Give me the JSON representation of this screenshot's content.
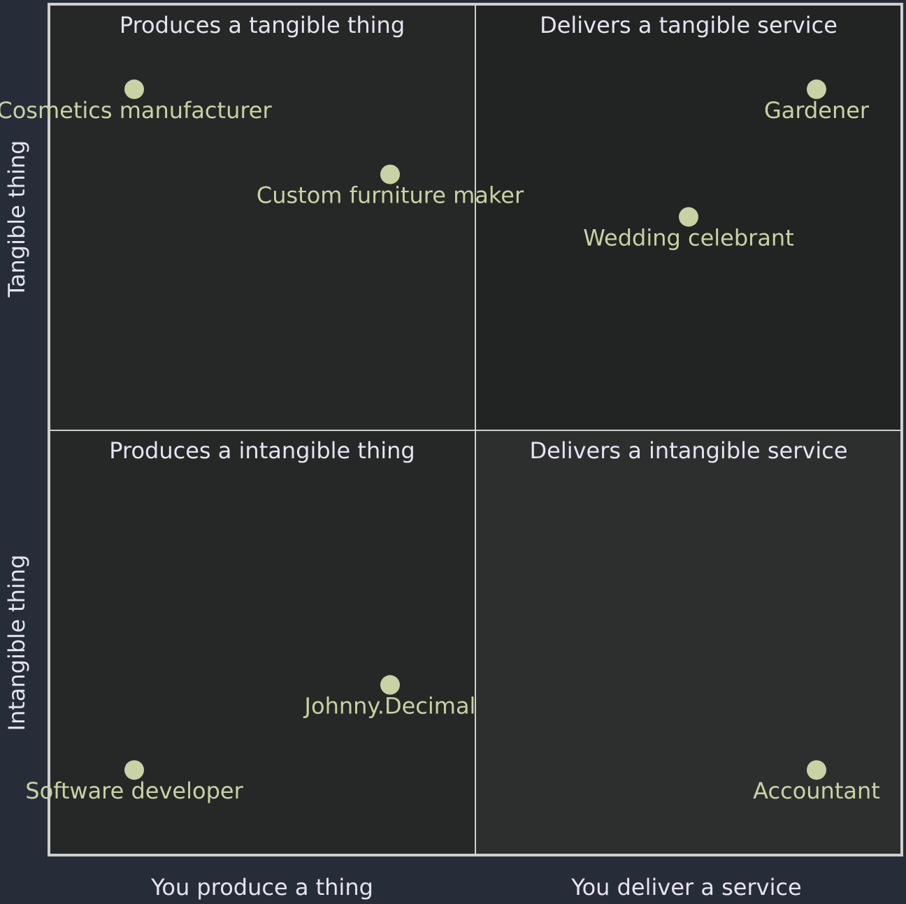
{
  "chart_data": {
    "type": "scatter",
    "title": "",
    "quadrants": {
      "top_left": "Produces a tangible thing",
      "top_right": "Delivers a tangible service",
      "bottom_left": "Produces a intangible thing",
      "bottom_right": "Delivers a intangible service"
    },
    "x_axis": {
      "low": "You produce a thing",
      "high": "You deliver a service"
    },
    "y_axis": {
      "low": "Intangible thing",
      "high": "Tangible thing"
    },
    "xlim": [
      0,
      1
    ],
    "ylim": [
      0,
      1
    ],
    "grid": false,
    "points": [
      {
        "label": "Cosmetics manufacturer",
        "x": 0.1,
        "y": 0.9
      },
      {
        "label": "Custom furniture maker",
        "x": 0.4,
        "y": 0.8
      },
      {
        "label": "Gardener",
        "x": 0.9,
        "y": 0.9
      },
      {
        "label": "Wedding celebrant",
        "x": 0.75,
        "y": 0.75
      },
      {
        "label": "Johnny.Decimal",
        "x": 0.4,
        "y": 0.2
      },
      {
        "label": "Software developer",
        "x": 0.1,
        "y": 0.1
      },
      {
        "label": "Accountant",
        "x": 0.9,
        "y": 0.1
      }
    ],
    "colors": {
      "background": "#272d38",
      "top_left_fill": "#262827",
      "top_right_fill": "#222423",
      "bottom_left_fill": "#262827",
      "bottom_right_fill": "#2d2f2f",
      "border": "#cfcfcf",
      "point": "#c8d2a4",
      "point_label": "#c8d2a4",
      "text": "#e6e3f2"
    }
  }
}
